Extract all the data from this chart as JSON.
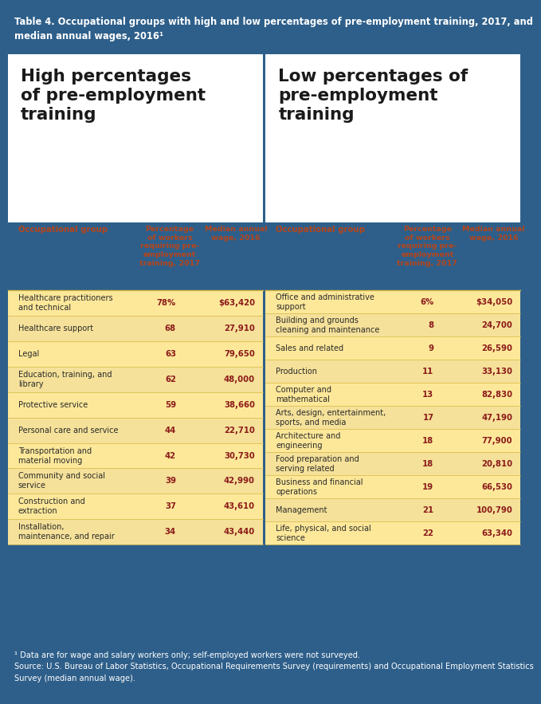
{
  "title": "Table 4. Occupational groups with high and low percentages of pre-employment training, 2017, and\nmedian annual wages, 2016¹",
  "title_bg": "#2e5f8a",
  "title_color": "#ffffff",
  "left_section_title": "High percentages\nof pre-employment\ntraining",
  "right_section_title": "Low percentages of\npre-employment\ntraining",
  "section_title_color": "#1a1a1a",
  "panel_bg": "#fde89a",
  "col_header_color": "#b5451b",
  "data_value_color": "#8b1a1a",
  "row_text_color": "#2a2a2a",
  "alt_row_bg": "#f5e199",
  "normal_row_bg": "#fde89a",
  "line_color": "#d4b840",
  "high_col1_header": "Percentage\nof workers\nrequiring pre-\nemployment\ntraining, 2017",
  "high_col2_header": "Median annual\nwage, 2016",
  "low_col1_header": "Percentage\nof workers\nrequiring pre-\nemployment\ntraining, 2017",
  "low_col2_header": "Median annual\nwage, 2016",
  "occ_group_header": "Occupational group",
  "high_data": [
    [
      "Healthcare practitioners\nand technical",
      "78%",
      "$63,420"
    ],
    [
      "Healthcare support",
      "68",
      "27,910"
    ],
    [
      "Legal",
      "63",
      "79,650"
    ],
    [
      "Education, training, and\nlibrary",
      "62",
      "48,000"
    ],
    [
      "Protective service",
      "59",
      "38,660"
    ],
    [
      "Personal care and service",
      "44",
      "22,710"
    ],
    [
      "Transportation and\nmaterial moving",
      "42",
      "30,730"
    ],
    [
      "Community and social\nservice",
      "39",
      "42,990"
    ],
    [
      "Construction and\nextraction",
      "37",
      "43,610"
    ],
    [
      "Installation,\nmaintenance, and repair",
      "34",
      "43,440"
    ]
  ],
  "low_data": [
    [
      "Office and administrative\nsupport",
      "6%",
      "$34,050"
    ],
    [
      "Building and grounds\ncleaning and maintenance",
      "8",
      "24,700"
    ],
    [
      "Sales and related",
      "9",
      "26,590"
    ],
    [
      "Production",
      "11",
      "33,130"
    ],
    [
      "Computer and\nmathematical",
      "13",
      "82,830"
    ],
    [
      "Arts, design, entertainment,\nsports, and media",
      "17",
      "47,190"
    ],
    [
      "Architecture and\nengineering",
      "18",
      "77,900"
    ],
    [
      "Food preparation and\nserving related",
      "18",
      "20,810"
    ],
    [
      "Business and financial\noperations",
      "19",
      "66,530"
    ],
    [
      "Management",
      "21",
      "100,790"
    ],
    [
      "Life, physical, and social\nscience",
      "22",
      "63,340"
    ]
  ],
  "footnote_bg": "#2e5f8a",
  "footnote_color": "#ffffff",
  "footnote_text": "¹ Data are for wage and salary workers only; self-employed workers were not surveyed.\nSource: U.S. Bureau of Labor Statistics, Occupational Requirements Survey (requirements) and Occupational Employment Statistics\nSurvey (median annual wage)."
}
